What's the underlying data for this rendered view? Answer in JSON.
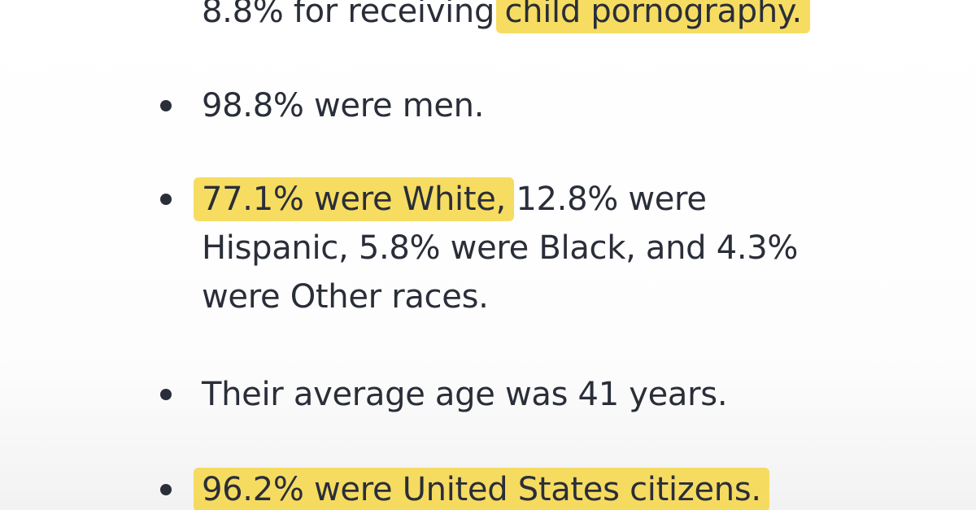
{
  "items": [
    {
      "bullet": false,
      "lines": [
        [
          {
            "text": "8.8% for receiving "
          },
          {
            "text": "child pornography.",
            "highlighted": true
          }
        ]
      ]
    },
    {
      "bullet": true,
      "lines": [
        [
          {
            "text": "98.8% were men."
          }
        ]
      ]
    },
    {
      "bullet": true,
      "lines": [
        [
          {
            "text": "77.1% were White,",
            "highlighted": true
          },
          {
            "text": " 12.8% were"
          }
        ],
        [
          {
            "text": "Hispanic, 5.8% were Black, and 4.3%"
          }
        ],
        [
          {
            "text": "were Other races."
          }
        ]
      ]
    },
    {
      "bullet": true,
      "lines": [
        [
          {
            "text": "Their average age was 41 years."
          }
        ]
      ]
    },
    {
      "bullet": true,
      "lines": [
        [
          {
            "text": "96.2% were United States citizens.",
            "highlighted": true
          }
        ]
      ]
    }
  ]
}
